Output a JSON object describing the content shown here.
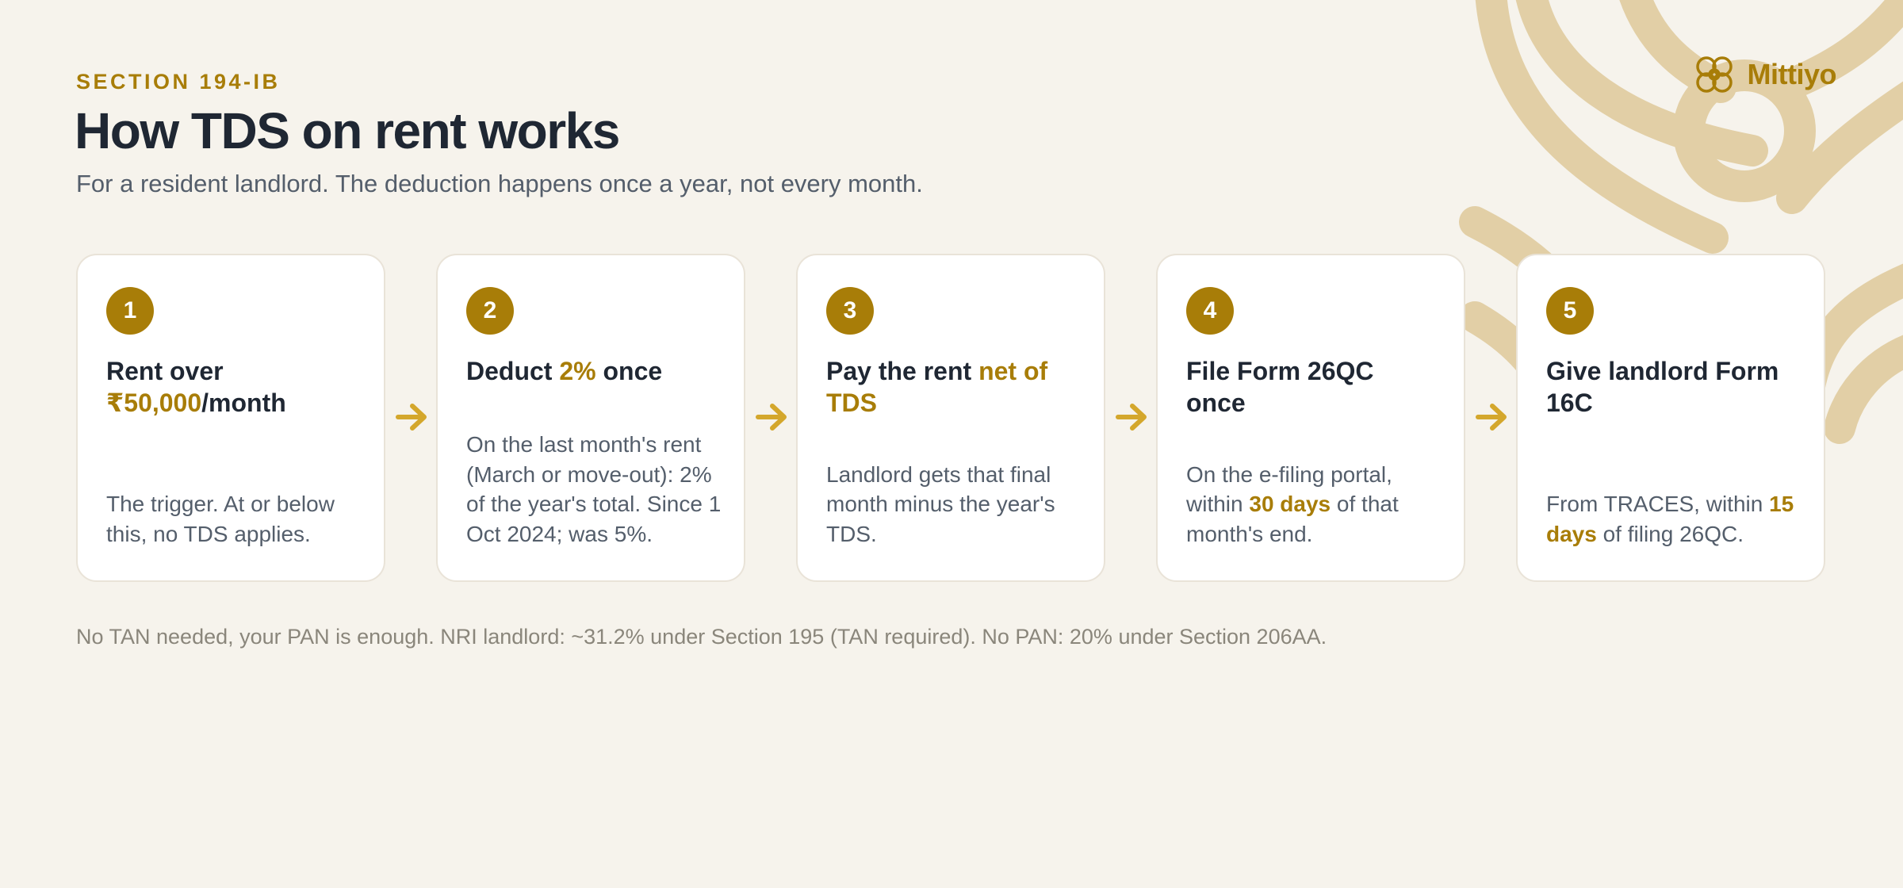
{
  "brand": {
    "name": "Mittiyo",
    "logo_icon": "interlaced-knot-icon",
    "accent": "#a87d08",
    "background": "#f6f3ec",
    "art_color": "#e2cfa6"
  },
  "header": {
    "eyebrow": "SECTION 194-IB",
    "title": "How TDS on rent works",
    "subtitle": "For a resident landlord. The deduction happens once a year, not every month."
  },
  "steps": [
    {
      "number": "1",
      "title": {
        "pre": "Rent over ",
        "hl": "₹50,000",
        "post": "/month"
      },
      "body": {
        "pre": "The trigger. At or below this, no TDS applies.",
        "hl": "",
        "post": ""
      }
    },
    {
      "number": "2",
      "title": {
        "pre": "Deduct ",
        "hl": "2%",
        "post": " once"
      },
      "body": {
        "pre": "On the last month's rent (March or move-out): 2% of the year's total. Since 1 Oct 2024; was 5%.",
        "hl": "",
        "post": ""
      }
    },
    {
      "number": "3",
      "title": {
        "pre": "Pay the rent ",
        "hl": "net of TDS",
        "post": ""
      },
      "body": {
        "pre": "Landlord gets that final month minus the year's TDS.",
        "hl": "",
        "post": ""
      }
    },
    {
      "number": "4",
      "title": {
        "pre": "File Form 26QC once",
        "hl": "",
        "post": ""
      },
      "body": {
        "pre": "On the e-filing portal, within ",
        "hl": "30 days",
        "post": " of that month's end."
      }
    },
    {
      "number": "5",
      "title": {
        "pre": "Give landlord Form 16C",
        "hl": "",
        "post": ""
      },
      "body": {
        "pre": "From TRACES, within ",
        "hl": "15 days",
        "post": " of filing 26QC."
      }
    }
  ],
  "connector_icon": "arrow-right-icon",
  "footnote": "No TAN needed, your PAN is enough. NRI landlord: ~31.2% under Section 195 (TAN required). No PAN: 20% under Section 206AA."
}
